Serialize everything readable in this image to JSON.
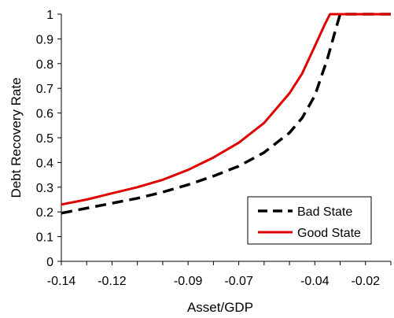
{
  "chart_data": {
    "type": "line",
    "title": "",
    "xlabel": "Asset/GDP",
    "ylabel": "Debt Recovery Rate",
    "xlim": [
      -0.14,
      -0.01
    ],
    "ylim": [
      0,
      1
    ],
    "x_ticks": [
      -0.14,
      -0.12,
      -0.09,
      -0.07,
      -0.04,
      -0.02
    ],
    "x_tick_labels": [
      "-0.14",
      "-0.12",
      "-0.09",
      "-0.07",
      "-0.04",
      "-0.02"
    ],
    "y_ticks": [
      0,
      0.1,
      0.2,
      0.3,
      0.4,
      0.5,
      0.6,
      0.7,
      0.8,
      0.9,
      1
    ],
    "y_tick_labels": [
      "0",
      "0.1",
      "0.2",
      "0.3",
      "0.4",
      "0.5",
      "0.6",
      "0.7",
      "0.8",
      "0.9",
      "1"
    ],
    "grid": false,
    "legend_position": "bottom-right",
    "series": [
      {
        "name": "Bad State",
        "color": "#000000",
        "dash": "dashed",
        "x": [
          -0.14,
          -0.13,
          -0.12,
          -0.11,
          -0.1,
          -0.09,
          -0.08,
          -0.07,
          -0.06,
          -0.05,
          -0.045,
          -0.04,
          -0.035,
          -0.032,
          -0.03,
          -0.02,
          -0.01
        ],
        "y": [
          0.195,
          0.215,
          0.235,
          0.255,
          0.28,
          0.31,
          0.345,
          0.385,
          0.44,
          0.52,
          0.58,
          0.67,
          0.82,
          0.93,
          1.0,
          1.0,
          1.0
        ]
      },
      {
        "name": "Good State",
        "color": "#e00000",
        "dash": "solid",
        "x": [
          -0.14,
          -0.13,
          -0.12,
          -0.11,
          -0.1,
          -0.09,
          -0.08,
          -0.07,
          -0.06,
          -0.05,
          -0.045,
          -0.04,
          -0.036,
          -0.034,
          -0.02,
          -0.01
        ],
        "y": [
          0.23,
          0.25,
          0.275,
          0.3,
          0.33,
          0.37,
          0.42,
          0.48,
          0.56,
          0.68,
          0.76,
          0.87,
          0.96,
          1.0,
          1.0,
          1.0
        ]
      }
    ]
  }
}
